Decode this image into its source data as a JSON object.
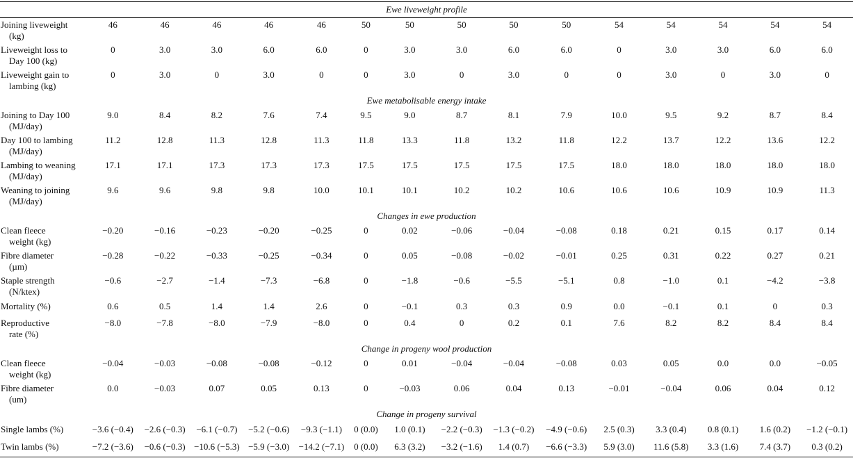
{
  "sections": [
    {
      "title": "Ewe liveweight profile",
      "rows": [
        {
          "label": [
            "Joining liveweight",
            "(kg)"
          ],
          "values": [
            "46",
            "46",
            "46",
            "46",
            "46",
            "50",
            "50",
            "50",
            "50",
            "50",
            "54",
            "54",
            "54",
            "54",
            "54"
          ]
        },
        {
          "label": [
            "Liveweight loss to",
            "Day 100 (kg)"
          ],
          "values": [
            "0",
            "3.0",
            "3.0",
            "6.0",
            "6.0",
            "0",
            "3.0",
            "3.0",
            "6.0",
            "6.0",
            "0",
            "3.0",
            "3.0",
            "6.0",
            "6.0"
          ]
        },
        {
          "label": [
            "Liveweight gain to",
            "lambing (kg)"
          ],
          "values": [
            "0",
            "3.0",
            "0",
            "3.0",
            "0",
            "0",
            "3.0",
            "0",
            "3.0",
            "0",
            "0",
            "3.0",
            "0",
            "3.0",
            "0"
          ]
        }
      ]
    },
    {
      "title": "Ewe metabolisable energy intake",
      "rows": [
        {
          "label": [
            "Joining to Day 100",
            "(MJ/day)"
          ],
          "values": [
            "9.0",
            "8.4",
            "8.2",
            "7.6",
            "7.4",
            "9.5",
            "9.0",
            "8.7",
            "8.1",
            "7.9",
            "10.0",
            "9.5",
            "9.2",
            "8.7",
            "8.4"
          ]
        },
        {
          "label": [
            "Day 100 to lambing",
            "(MJ/day)"
          ],
          "values": [
            "11.2",
            "12.8",
            "11.3",
            "12.8",
            "11.3",
            "11.8",
            "13.3",
            "11.8",
            "13.2",
            "11.8",
            "12.2",
            "13.7",
            "12.2",
            "13.6",
            "12.2"
          ]
        },
        {
          "label": [
            "Lambing to weaning",
            "(MJ/day)"
          ],
          "values": [
            "17.1",
            "17.1",
            "17.3",
            "17.3",
            "17.3",
            "17.5",
            "17.5",
            "17.5",
            "17.5",
            "17.5",
            "18.0",
            "18.0",
            "18.0",
            "18.0",
            "18.0"
          ]
        },
        {
          "label": [
            "Weaning to joining",
            "(MJ/day)"
          ],
          "values": [
            "9.6",
            "9.6",
            "9.8",
            "9.8",
            "10.0",
            "10.1",
            "10.1",
            "10.2",
            "10.2",
            "10.6",
            "10.6",
            "10.6",
            "10.9",
            "10.9",
            "11.3"
          ]
        }
      ]
    },
    {
      "title": "Changes in ewe production",
      "rows": [
        {
          "label": [
            "Clean fleece",
            "weight (kg)"
          ],
          "values": [
            "−0.20",
            "−0.16",
            "−0.23",
            "−0.20",
            "−0.25",
            "0",
            "0.02",
            "−0.06",
            "−0.04",
            "−0.08",
            "0.18",
            "0.21",
            "0.15",
            "0.17",
            "0.14"
          ]
        },
        {
          "label": [
            "Fibre diameter",
            "(µm)"
          ],
          "values": [
            "−0.28",
            "−0.22",
            "−0.33",
            "−0.25",
            "−0.34",
            "0",
            "0.05",
            "−0.08",
            "−0.02",
            "−0.01",
            "0.25",
            "0.31",
            "0.22",
            "0.27",
            "0.21"
          ]
        },
        {
          "label": [
            "Staple strength",
            "(N/ktex)"
          ],
          "values": [
            "−0.6",
            "−2.7",
            "−1.4",
            "−7.3",
            "−6.8",
            "0",
            "−1.8",
            "−0.6",
            "−5.5",
            "−5.1",
            "0.8",
            "−1.0",
            "0.1",
            "−4.2",
            "−3.8"
          ]
        },
        {
          "label": [
            "Mortality (%)"
          ],
          "values": [
            "0.6",
            "0.5",
            "1.4",
            "1.4",
            "2.6",
            "0",
            "−0.1",
            "0.3",
            "0.3",
            "0.9",
            "0.0",
            "−0.1",
            "0.1",
            "0",
            "0.3"
          ]
        },
        {
          "label": [
            "Reproductive",
            "rate (%)"
          ],
          "values": [
            "−8.0",
            "−7.8",
            "−8.0",
            "−7.9",
            "−8.0",
            "0",
            "0.4",
            "0",
            "0.2",
            "0.1",
            "7.6",
            "8.2",
            "8.2",
            "8.4",
            "8.4"
          ]
        }
      ]
    },
    {
      "title": "Change in progeny wool production",
      "rows": [
        {
          "label": [
            "Clean fleece",
            "weight (kg)"
          ],
          "values": [
            "−0.04",
            "−0.03",
            "−0.08",
            "−0.08",
            "−0.12",
            "0",
            "0.01",
            "−0.04",
            "−0.04",
            "−0.08",
            "0.03",
            "0.05",
            "0.0",
            "0.0",
            "−0.05"
          ]
        },
        {
          "label": [
            "Fibre diameter",
            "(um)"
          ],
          "values": [
            "0.0",
            "−0.03",
            "0.07",
            "0.05",
            "0.13",
            "0",
            "−0.03",
            "0.06",
            "0.04",
            "0.13",
            "−0.01",
            "−0.04",
            "0.06",
            "0.04",
            "0.12"
          ]
        }
      ]
    },
    {
      "title": "Change in progeny survival",
      "rows": [
        {
          "label": [
            "Single lambs (%)"
          ],
          "values": [
            "−3.6 (−0.4)",
            "−2.6 (−0.3)",
            "−6.1 (−0.7)",
            "−5.2 (−0.6)",
            "−9.3 (−1.1)",
            "0 (0.0)",
            "1.0 (0.1)",
            "−2.2 (−0.3)",
            "−1.3 (−0.2)",
            "−4.9 (−0.6)",
            "2.5 (0.3)",
            "3.3 (0.4)",
            "0.8 (0.1)",
            "1.6 (0.2)",
            "−1.2 (−0.1)"
          ]
        },
        {
          "label": [
            "Twin lambs (%)"
          ],
          "values": [
            "−7.2 (−3.6)",
            "−0.6 (−0.3)",
            "−10.6 (−5.3)",
            "−5.9 (−3.0)",
            "−14.2 (−7.1)",
            "0 (0.0)",
            "6.3 (3.2)",
            "−3.2 (−1.6)",
            "1.4 (0.7)",
            "−6.6 (−3.3)",
            "5.9 (3.0)",
            "11.6 (5.8)",
            "3.3 (1.6)",
            "7.4 (3.7)",
            "0.3 (0.2)"
          ]
        }
      ]
    }
  ]
}
